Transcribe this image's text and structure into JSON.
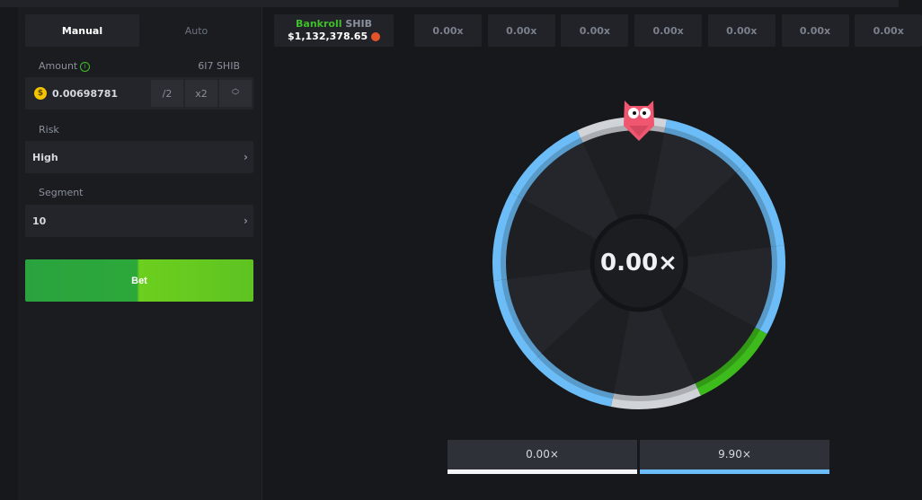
{
  "controls": {
    "tabs": [
      {
        "label": "Manual",
        "active": true
      },
      {
        "label": "Auto",
        "active": false
      }
    ],
    "amount_label": "Amount",
    "amount_info_icon": "info-icon",
    "amount_max": "6I7 SHIB",
    "amount_value": "0.00698781",
    "coin_symbol": "$",
    "half_label": "/2",
    "double_label": "x2",
    "risk_label": "Risk",
    "risk_value": "High",
    "segment_label": "Segment",
    "segment_value": "10",
    "bet_label": "Bet"
  },
  "bankroll": {
    "label": "Bankroll",
    "currency": "SHIB",
    "value": "$1,132,378.65"
  },
  "history": [
    "0.00x",
    "0.00x",
    "0.00x",
    "0.00x",
    "0.00x",
    "0.00x",
    "0.00x"
  ],
  "wheel": {
    "center_value": "0.00×",
    "segments": [
      "gray",
      "blue",
      "blue",
      "blue",
      "green",
      "gray",
      "blue",
      "blue",
      "blue",
      "blue"
    ],
    "colors": {
      "gray": "#d0d3d8",
      "blue": "#6cbdf7",
      "green": "#3dbb1c"
    }
  },
  "legend": [
    {
      "label": "0.00×",
      "color": "#f4f6fa"
    },
    {
      "label": "9.90×",
      "color": "#6cbdf7"
    }
  ]
}
